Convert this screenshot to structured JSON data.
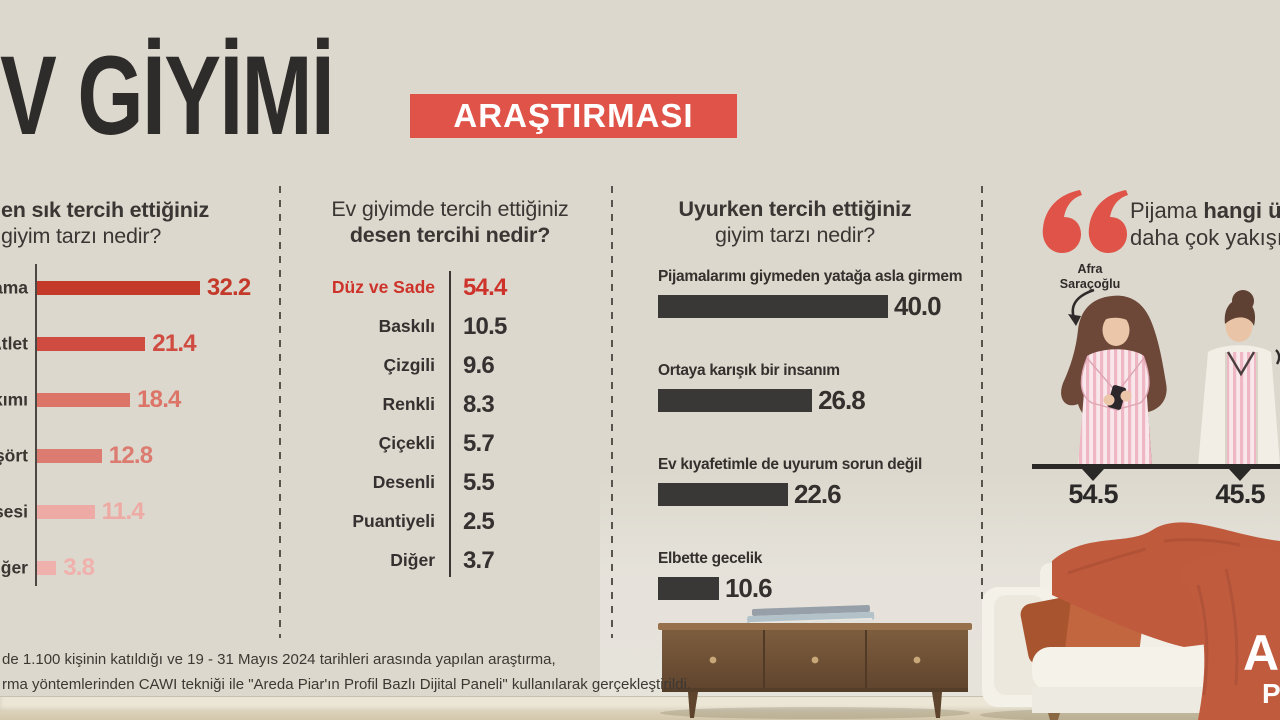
{
  "title": {
    "main": "V GİYİMİ",
    "badge": "ARAŞTIRMASI"
  },
  "colors": {
    "background": "#dcd8cd",
    "accent_red": "#df5348",
    "dark_text": "#33302d",
    "dark_bar": "#3a3837"
  },
  "chart_data": [
    {
      "id": "home-style",
      "type": "bar",
      "orientation": "horizontal",
      "heading": {
        "line1_bold": "en sık tercih ettiğiniz",
        "line2": "giyim tarzı nedir?"
      },
      "xlim": [
        0,
        35
      ],
      "items": [
        {
          "label": "ama",
          "value": 32.2,
          "display": "32.2",
          "color": "#c43a2a"
        },
        {
          "label": "Atlet",
          "value": 21.4,
          "display": "21.4",
          "color": "#d04c40"
        },
        {
          "label": "kımı",
          "value": 18.4,
          "display": "18.4",
          "color": "#dc7467"
        },
        {
          "label": "şört",
          "value": 12.8,
          "display": "12.8",
          "color": "#dc7b70"
        },
        {
          "label": "sesi",
          "value": 11.4,
          "display": "11.4",
          "color": "#eeaaa4"
        },
        {
          "label": "iğer",
          "value": 3.8,
          "display": "3.8",
          "color": "#f0b1ad"
        }
      ]
    },
    {
      "id": "pattern-preference",
      "type": "table",
      "heading": {
        "line1": "Ev giyimde tercih ettiğiniz",
        "line2_bold": "desen tercihi nedir?"
      },
      "items": [
        {
          "label": "Düz ve Sade",
          "value": 54.4,
          "display": "54.4",
          "color": "#cd332a"
        },
        {
          "label": "Baskılı",
          "value": 10.5,
          "display": "10.5",
          "color": "#343130"
        },
        {
          "label": "Çizgili",
          "value": 9.6,
          "display": "9.6",
          "color": "#343130"
        },
        {
          "label": "Renkli",
          "value": 8.3,
          "display": "8.3",
          "color": "#343130"
        },
        {
          "label": "Çiçekli",
          "value": 5.7,
          "display": "5.7",
          "color": "#343130"
        },
        {
          "label": "Desenli",
          "value": 5.5,
          "display": "5.5",
          "color": "#343130"
        },
        {
          "label": "Puantiyeli",
          "value": 2.5,
          "display": "2.5",
          "color": "#343130"
        },
        {
          "label": "Diğer",
          "value": 3.7,
          "display": "3.7",
          "color": "#343130"
        }
      ]
    },
    {
      "id": "sleepwear",
      "type": "bar",
      "orientation": "horizontal",
      "heading": {
        "line1_bold": "Uyurken tercih ettiğiniz",
        "line2": "giyim tarzı nedir?"
      },
      "xlim": [
        0,
        45
      ],
      "items": [
        {
          "label": "Pijamalarımı giymeden yatağa asla girmem",
          "value": 40.0,
          "display": "40.0"
        },
        {
          "label": "Ortaya karışık bir insanım",
          "value": 26.8,
          "display": "26.8"
        },
        {
          "label": "Ev kıyafetimle de uyurum sorun değil",
          "value": 22.6,
          "display": "22.6"
        },
        {
          "label": "Elbette gecelik",
          "value": 10.6,
          "display": "10.6"
        }
      ]
    },
    {
      "id": "celebrity-pajama",
      "type": "bar",
      "question": {
        "line1_regular": "Pijama ",
        "line1_bold": "hangi ünl",
        "line2": "daha çok yakışıy"
      },
      "person1": {
        "name_line1": "Afra",
        "name_line2": "Saraçoğlu",
        "value": 54.5,
        "display": "54.5"
      },
      "person2": {
        "value": 45.5,
        "display": "45.5"
      }
    }
  ],
  "footer": {
    "line1": "de 1.100 kişinin katıldığı ve 19 - 31 Mayıs 2024 tarihleri arasında yapılan araştırma,",
    "line2": "rma yöntemlerinden CAWI tekniği ile \"Areda Piar'ın Profil Bazlı Dijital Paneli\" kullanılarak gerçekleştirildi."
  },
  "logo": {
    "line1": "Ar",
    "line2": "P"
  }
}
